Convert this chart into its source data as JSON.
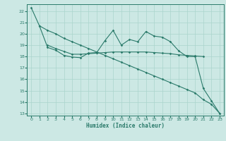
{
  "xlabel": "Humidex (Indice chaleur)",
  "bg_color": "#cce8e4",
  "line_color": "#2a7a6a",
  "grid_color": "#aad4cc",
  "xlim": [
    -0.5,
    23.5
  ],
  "ylim": [
    12.8,
    22.6
  ],
  "yticks": [
    13,
    14,
    15,
    16,
    17,
    18,
    19,
    20,
    21,
    22
  ],
  "xticks": [
    0,
    1,
    2,
    3,
    4,
    5,
    6,
    7,
    8,
    9,
    10,
    11,
    12,
    13,
    14,
    15,
    16,
    17,
    18,
    19,
    20,
    21,
    22,
    23
  ],
  "line1_x": [
    0,
    1,
    2,
    3,
    4,
    5,
    6,
    7,
    8,
    9,
    10,
    11,
    12,
    13,
    14,
    15,
    16,
    17,
    18,
    19,
    20,
    21,
    22,
    23
  ],
  "line1_y": [
    22.3,
    20.7,
    20.3,
    20.0,
    19.6,
    19.3,
    19.0,
    18.7,
    18.4,
    18.1,
    17.8,
    17.5,
    17.2,
    16.9,
    16.6,
    16.3,
    16.0,
    15.7,
    15.4,
    15.1,
    14.8,
    14.2,
    13.8,
    13.0
  ],
  "line2_x": [
    1,
    2,
    3,
    4,
    5,
    6,
    7,
    8,
    9,
    10,
    11,
    12,
    13,
    14,
    15,
    16,
    17,
    18,
    19,
    20,
    21,
    22,
    23
  ],
  "line2_y": [
    20.7,
    18.8,
    18.55,
    18.1,
    17.95,
    17.9,
    18.3,
    18.35,
    19.4,
    20.3,
    19.0,
    19.5,
    19.3,
    20.2,
    19.8,
    19.7,
    19.3,
    18.5,
    18.0,
    18.0,
    15.2,
    14.1,
    13.0
  ],
  "line3_x": [
    2,
    3,
    4,
    5,
    6,
    7,
    8,
    9,
    10,
    11,
    12,
    13,
    14,
    15,
    16,
    17,
    18,
    19,
    20,
    21
  ],
  "line3_y": [
    19.0,
    18.7,
    18.45,
    18.2,
    18.2,
    18.25,
    18.3,
    18.35,
    18.4,
    18.4,
    18.4,
    18.4,
    18.4,
    18.35,
    18.3,
    18.25,
    18.15,
    18.1,
    18.05,
    18.0
  ],
  "markersize": 1.8,
  "linewidth": 0.8
}
